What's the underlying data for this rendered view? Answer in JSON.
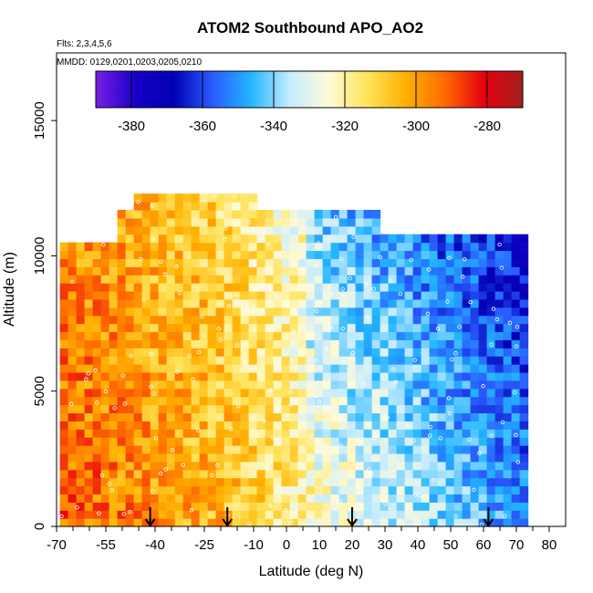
{
  "chart_data": {
    "type": "heatmap",
    "title": "ATOM2 Southbound APO_AO2",
    "flights_note": "Flts: 2,3,4,5,6",
    "dates_note": "MMDD: 0129,0201,0203,0205,0210",
    "xlabel": "Latitude (deg N)",
    "ylabel": "Altitude (m)",
    "xlim": [
      -70,
      85
    ],
    "ylim": [
      0,
      17500
    ],
    "x_ticks": [
      "-70",
      "-55",
      "-40",
      "-25",
      "-10",
      "0",
      "10",
      "20",
      "30",
      "40",
      "50",
      "60",
      "70",
      "80"
    ],
    "x_tick_values": [
      -70,
      -55,
      -40,
      -25,
      -10,
      0,
      10,
      20,
      30,
      40,
      50,
      60,
      70,
      80
    ],
    "x_minor_ticks": [
      -65,
      -60,
      -50,
      -45,
      -35,
      -30,
      -20,
      -15,
      -5,
      5,
      15,
      25,
      35,
      45,
      55,
      65,
      75
    ],
    "y_ticks": [
      "0",
      "5000",
      "10000",
      "15000"
    ],
    "y_tick_values": [
      0,
      5000,
      10000,
      15000
    ],
    "colorbar": {
      "range": [
        -390,
        -270
      ],
      "tick_labels": [
        "-380",
        "-360",
        "-340",
        "-320",
        "-300",
        "-280"
      ],
      "tick_values": [
        -380,
        -360,
        -340,
        -320,
        -300,
        -280
      ],
      "colors": [
        "#7a1fe6",
        "#1a00c8",
        "#0000b4",
        "#2a5cff",
        "#22b6ff",
        "#c6ecff",
        "#fffbd8",
        "#ffe35a",
        "#ffb000",
        "#ff6a00",
        "#e60010",
        "#a0201a"
      ]
    },
    "profile_arrows_lat": [
      -41.5,
      -18,
      20,
      61.5
    ],
    "grid": false,
    "legend": "top"
  }
}
